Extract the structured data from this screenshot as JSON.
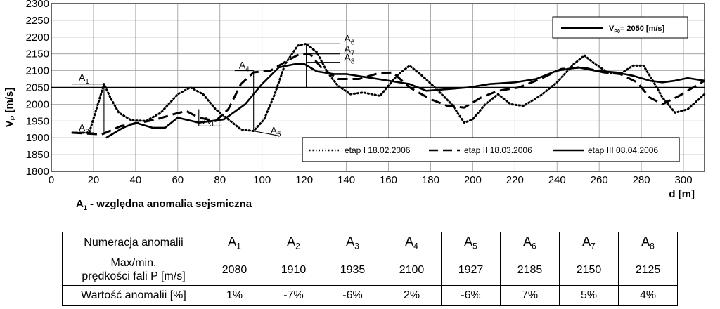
{
  "chart_data": {
    "type": "line",
    "y_axis": {
      "label_main": "V",
      "label_sub": "P",
      "label_unit": "[m/s]",
      "ylim": [
        1800,
        2300
      ],
      "ticks": [
        1800,
        1850,
        1900,
        1950,
        2000,
        2050,
        2100,
        2150,
        2200,
        2250,
        2300
      ]
    },
    "x_axis": {
      "label": "d [m]",
      "xlim": [
        0,
        310
      ],
      "ticks": [
        0,
        20,
        40,
        60,
        80,
        100,
        120,
        140,
        160,
        180,
        200,
        220,
        240,
        260,
        280,
        300
      ]
    },
    "grid": true,
    "reference_line": {
      "value": 2050,
      "legend_prefix": "V",
      "legend_sub": "P0",
      "legend_suffix": "= 2050 [m/s]",
      "legend_position": "top-right"
    },
    "legend_position": "bottom-right",
    "series": [
      {
        "name": "etap I 18.02.2006",
        "style": "dotted",
        "points": [
          [
            10,
            1915
          ],
          [
            18,
            1915
          ],
          [
            25,
            2060
          ],
          [
            28,
            2020
          ],
          [
            32,
            1975
          ],
          [
            38,
            1952
          ],
          [
            45,
            1950
          ],
          [
            52,
            1975
          ],
          [
            60,
            2030
          ],
          [
            66,
            2050
          ],
          [
            72,
            2030
          ],
          [
            78,
            1985
          ],
          [
            84,
            1955
          ],
          [
            90,
            1925
          ],
          [
            96,
            1920
          ],
          [
            101,
            1955
          ],
          [
            106,
            2030
          ],
          [
            111,
            2120
          ],
          [
            117,
            2175
          ],
          [
            121,
            2180
          ],
          [
            126,
            2155
          ],
          [
            131,
            2095
          ],
          [
            136,
            2055
          ],
          [
            142,
            2030
          ],
          [
            148,
            2035
          ],
          [
            156,
            2025
          ],
          [
            164,
            2085
          ],
          [
            170,
            2115
          ],
          [
            176,
            2085
          ],
          [
            182,
            2050
          ],
          [
            190,
            2000
          ],
          [
            196,
            1945
          ],
          [
            200,
            1955
          ],
          [
            206,
            2000
          ],
          [
            212,
            2030
          ],
          [
            218,
            2000
          ],
          [
            224,
            1995
          ],
          [
            232,
            2025
          ],
          [
            240,
            2065
          ],
          [
            248,
            2120
          ],
          [
            253,
            2145
          ],
          [
            258,
            2120
          ],
          [
            264,
            2095
          ],
          [
            270,
            2090
          ],
          [
            276,
            2115
          ],
          [
            281,
            2115
          ],
          [
            285,
            2075
          ],
          [
            290,
            2020
          ],
          [
            296,
            1975
          ],
          [
            302,
            1985
          ],
          [
            310,
            2030
          ]
        ]
      },
      {
        "name": "etap II 18.03.2006",
        "style": "dashed",
        "points": [
          [
            10,
            1915
          ],
          [
            24,
            1910
          ],
          [
            33,
            1935
          ],
          [
            42,
            1945
          ],
          [
            50,
            1955
          ],
          [
            58,
            1970
          ],
          [
            64,
            1980
          ],
          [
            70,
            1960
          ],
          [
            78,
            1950
          ],
          [
            84,
            1985
          ],
          [
            90,
            2060
          ],
          [
            96,
            2095
          ],
          [
            104,
            2100
          ],
          [
            112,
            2130
          ],
          [
            118,
            2150
          ],
          [
            123,
            2148
          ],
          [
            128,
            2110
          ],
          [
            136,
            2075
          ],
          [
            146,
            2075
          ],
          [
            154,
            2090
          ],
          [
            162,
            2095
          ],
          [
            170,
            2050
          ],
          [
            180,
            2015
          ],
          [
            188,
            1995
          ],
          [
            196,
            1990
          ],
          [
            204,
            2020
          ],
          [
            212,
            2040
          ],
          [
            222,
            2050
          ],
          [
            232,
            2075
          ],
          [
            242,
            2105
          ],
          [
            252,
            2110
          ],
          [
            262,
            2095
          ],
          [
            270,
            2090
          ],
          [
            278,
            2065
          ],
          [
            284,
            2020
          ],
          [
            290,
            2000
          ],
          [
            298,
            2025
          ],
          [
            310,
            2070
          ]
        ]
      },
      {
        "name": "etap III 08.04.2006",
        "style": "solid",
        "points": [
          [
            26,
            1900
          ],
          [
            34,
            1930
          ],
          [
            40,
            1945
          ],
          [
            48,
            1930
          ],
          [
            54,
            1930
          ],
          [
            60,
            1960
          ],
          [
            70,
            1945
          ],
          [
            82,
            1955
          ],
          [
            92,
            2000
          ],
          [
            100,
            2060
          ],
          [
            108,
            2110
          ],
          [
            116,
            2120
          ],
          [
            120,
            2120
          ],
          [
            126,
            2098
          ],
          [
            134,
            2090
          ],
          [
            140,
            2090
          ],
          [
            150,
            2080
          ],
          [
            160,
            2070
          ],
          [
            170,
            2060
          ],
          [
            178,
            2040
          ],
          [
            188,
            2045
          ],
          [
            198,
            2050
          ],
          [
            208,
            2060
          ],
          [
            220,
            2065
          ],
          [
            230,
            2075
          ],
          [
            240,
            2100
          ],
          [
            250,
            2110
          ],
          [
            258,
            2100
          ],
          [
            268,
            2095
          ],
          [
            276,
            2085
          ],
          [
            284,
            2070
          ],
          [
            290,
            2065
          ],
          [
            296,
            2070
          ],
          [
            302,
            2078
          ],
          [
            310,
            2070
          ]
        ]
      }
    ],
    "annotations": [
      {
        "label": "A",
        "sub": "1",
        "x": 25,
        "y": 2060
      },
      {
        "label": "A",
        "sub": "2",
        "x": 18,
        "y": 1915
      },
      {
        "label": "A",
        "sub": "3",
        "x": 70,
        "y": 1935
      },
      {
        "label": "A",
        "sub": "4",
        "x": 96,
        "y": 2100
      },
      {
        "label": "A",
        "sub": "5",
        "x": 96,
        "y": 1920
      },
      {
        "label": "A",
        "sub": "6",
        "x": 121,
        "y": 2180
      },
      {
        "label": "A",
        "sub": "7",
        "x": 121,
        "y": 2150
      },
      {
        "label": "A",
        "sub": "8",
        "x": 121,
        "y": 2125
      }
    ]
  },
  "note": {
    "symbol": "A",
    "symbol_sub": "1",
    "text": " -  względna anomalia sejsmiczna"
  },
  "table": {
    "row_headers": [
      "Numeracja anomalii",
      "Max/min.",
      "prędkości fali P [m/s]",
      "Wartość anomalii [%]"
    ],
    "anomalies": [
      {
        "label": "A",
        "sub": "1",
        "velocity": "2080",
        "value": "1%"
      },
      {
        "label": "A",
        "sub": "2",
        "velocity": "1910",
        "value": "-7%"
      },
      {
        "label": "A",
        "sub": "3",
        "velocity": "1935",
        "value": "-6%"
      },
      {
        "label": "A",
        "sub": "4",
        "velocity": "2100",
        "value": "2%"
      },
      {
        "label": "A",
        "sub": "5",
        "velocity": "1927",
        "value": "-6%"
      },
      {
        "label": "A",
        "sub": "6",
        "velocity": "2185",
        "value": "7%"
      },
      {
        "label": "A",
        "sub": "7",
        "velocity": "2150",
        "value": "5%"
      },
      {
        "label": "A",
        "sub": "8",
        "velocity": "2125",
        "value": "4%"
      }
    ]
  }
}
